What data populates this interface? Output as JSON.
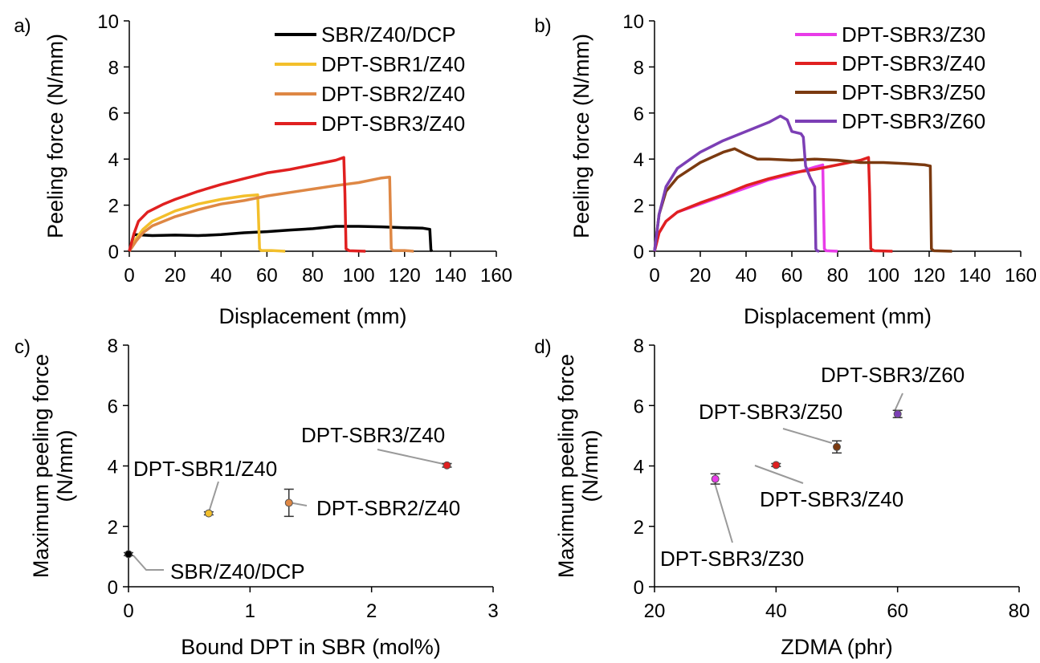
{
  "chart_data": [
    {
      "panel_label": "a)",
      "type": "line",
      "xlabel": "Displacement (mm)",
      "ylabel": "Peeling force (N/mm)",
      "xlim": [
        0,
        160
      ],
      "ylim": [
        0,
        10
      ],
      "x_ticks": [
        "0",
        "20",
        "40",
        "60",
        "80",
        "100",
        "120",
        "140",
        "160"
      ],
      "y_ticks": [
        "0",
        "2",
        "4",
        "6",
        "8",
        "10"
      ],
      "legend_position": "top-right",
      "grid": false,
      "series": [
        {
          "name": "SBR/Z40/DCP",
          "color": "#000000",
          "x": [
            0,
            2,
            10,
            20,
            30,
            40,
            50,
            60,
            70,
            80,
            90,
            100,
            110,
            120,
            128,
            131,
            131.5,
            132
          ],
          "y": [
            0,
            0.72,
            0.68,
            0.7,
            0.68,
            0.72,
            0.8,
            0.85,
            0.92,
            0.98,
            1.08,
            1.08,
            1.06,
            1.02,
            1.0,
            0.95,
            0.05,
            0
          ]
        },
        {
          "name": "DPT-SBR1/Z40",
          "color": "#f3bf2b",
          "x": [
            0,
            3,
            6,
            10,
            20,
            30,
            40,
            50,
            56,
            56.8,
            57.5,
            62,
            68
          ],
          "y": [
            0,
            0.55,
            0.95,
            1.3,
            1.75,
            2.05,
            2.25,
            2.4,
            2.45,
            0.1,
            0.03,
            0.03,
            0
          ]
        },
        {
          "name": "DPT-SBR2/Z40",
          "color": "#de8744",
          "x": [
            0,
            3,
            6,
            10,
            20,
            30,
            40,
            50,
            60,
            70,
            80,
            90,
            100,
            110,
            113.5,
            114.2,
            115,
            120,
            124
          ],
          "y": [
            0,
            0.45,
            0.8,
            1.1,
            1.5,
            1.8,
            2.05,
            2.2,
            2.4,
            2.55,
            2.7,
            2.85,
            2.98,
            3.18,
            3.22,
            0.1,
            0.03,
            0.03,
            0
          ]
        },
        {
          "name": "DPT-SBR3/Z40",
          "color": "#e02020",
          "x": [
            0,
            2,
            4,
            8,
            15,
            20,
            30,
            40,
            50,
            60,
            70,
            80,
            90,
            93.5,
            94,
            94.5,
            96,
            103
          ],
          "y": [
            0,
            0.75,
            1.3,
            1.7,
            2.05,
            2.25,
            2.6,
            2.9,
            3.15,
            3.4,
            3.55,
            3.75,
            3.95,
            4.07,
            2.5,
            0.1,
            0.02,
            0
          ]
        }
      ]
    },
    {
      "panel_label": "b)",
      "type": "line",
      "xlabel": "Displacement (mm)",
      "ylabel": "Peeling force (N/mm)",
      "xlim": [
        0,
        160
      ],
      "ylim": [
        0,
        10
      ],
      "x_ticks": [
        "0",
        "20",
        "40",
        "60",
        "80",
        "100",
        "120",
        "140",
        "160"
      ],
      "y_ticks": [
        "0",
        "2",
        "4",
        "6",
        "8",
        "10"
      ],
      "legend_position": "top-right",
      "grid": false,
      "series": [
        {
          "name": "DPT-SBR3/Z30",
          "color": "#e83ce8",
          "x": [
            0,
            2,
            5,
            10,
            20,
            30,
            40,
            50,
            60,
            70,
            73.5,
            74.2,
            75,
            80
          ],
          "y": [
            0,
            0.8,
            1.3,
            1.7,
            2.05,
            2.4,
            2.75,
            3.1,
            3.35,
            3.65,
            3.75,
            0.1,
            0.02,
            0
          ]
        },
        {
          "name": "DPT-SBR3/Z40",
          "color": "#e02020",
          "x": [
            0,
            2,
            5,
            10,
            20,
            30,
            40,
            50,
            60,
            70,
            80,
            90,
            93.5,
            94,
            94.5,
            96,
            104
          ],
          "y": [
            0,
            0.8,
            1.3,
            1.7,
            2.1,
            2.45,
            2.85,
            3.15,
            3.4,
            3.55,
            3.75,
            3.95,
            4.07,
            2.5,
            0.1,
            0.02,
            0
          ]
        },
        {
          "name": "DPT-SBR3/Z50",
          "color": "#7b3a10",
          "x": [
            0,
            2,
            5,
            10,
            20,
            30,
            35,
            40,
            45,
            50,
            60,
            70,
            80,
            90,
            100,
            110,
            118,
            120.5,
            121,
            122,
            130
          ],
          "y": [
            0,
            1.6,
            2.6,
            3.2,
            3.85,
            4.3,
            4.45,
            4.2,
            4.0,
            4.0,
            3.95,
            4.0,
            3.95,
            3.85,
            3.85,
            3.8,
            3.75,
            3.7,
            0.1,
            0.02,
            0
          ]
        },
        {
          "name": "DPT-SBR3/Z60",
          "color": "#7c3fb5",
          "x": [
            0,
            2,
            5,
            10,
            20,
            30,
            40,
            50,
            55,
            58,
            60,
            64,
            65,
            66,
            68,
            70,
            70.5,
            71,
            72
          ],
          "y": [
            0,
            1.6,
            2.8,
            3.6,
            4.3,
            4.8,
            5.2,
            5.6,
            5.87,
            5.7,
            5.2,
            5.1,
            4.95,
            3.7,
            3.2,
            2.8,
            0.1,
            0.02,
            0
          ]
        }
      ]
    },
    {
      "panel_label": "c)",
      "type": "scatter",
      "xlabel": "Bound DPT in SBR (mol%)",
      "ylabel": "Maximum peeling force (N/mm)",
      "ylabel_lines": [
        "Maximum peeling force",
        "(N/mm)"
      ],
      "xlim": [
        0,
        3
      ],
      "ylim": [
        0,
        8
      ],
      "x_ticks": [
        "0",
        "1",
        "2",
        "3"
      ],
      "y_ticks": [
        "0",
        "2",
        "4",
        "6",
        "8"
      ],
      "grid": false,
      "points": [
        {
          "label": "SBR/Z40/DCP",
          "x": 0.0,
          "y": 1.08,
          "err": 0.05,
          "color": "#000000"
        },
        {
          "label": "DPT-SBR1/Z40",
          "x": 0.66,
          "y": 2.43,
          "err": 0.05,
          "color": "#f3bf2b"
        },
        {
          "label": "DPT-SBR2/Z40",
          "x": 1.32,
          "y": 2.78,
          "err": 0.45,
          "color": "#de8744"
        },
        {
          "label": "DPT-SBR3/Z40",
          "x": 2.62,
          "y": 4.02,
          "err": 0.06,
          "color": "#e02020"
        }
      ]
    },
    {
      "panel_label": "d)",
      "type": "scatter",
      "xlabel": "ZDMA (phr)",
      "ylabel": "Maximum peeling force (N/mm)",
      "ylabel_lines": [
        "Maximum peeling force",
        "(N/mm)"
      ],
      "xlim": [
        20,
        80
      ],
      "ylim": [
        0,
        8
      ],
      "x_ticks": [
        "20",
        "40",
        "60",
        "80"
      ],
      "y_ticks": [
        "0",
        "2",
        "4",
        "6",
        "8"
      ],
      "grid": false,
      "points": [
        {
          "label": "DPT-SBR3/Z30",
          "x": 30,
          "y": 3.57,
          "err": 0.17,
          "color": "#e83ce8"
        },
        {
          "label": "DPT-SBR3/Z40",
          "x": 40,
          "y": 4.03,
          "err": 0.05,
          "color": "#e02020"
        },
        {
          "label": "DPT-SBR3/Z50",
          "x": 50,
          "y": 4.63,
          "err": 0.2,
          "color": "#7b3a10"
        },
        {
          "label": "DPT-SBR3/Z60",
          "x": 60,
          "y": 5.72,
          "err": 0.12,
          "color": "#7c3fb5"
        }
      ]
    }
  ]
}
